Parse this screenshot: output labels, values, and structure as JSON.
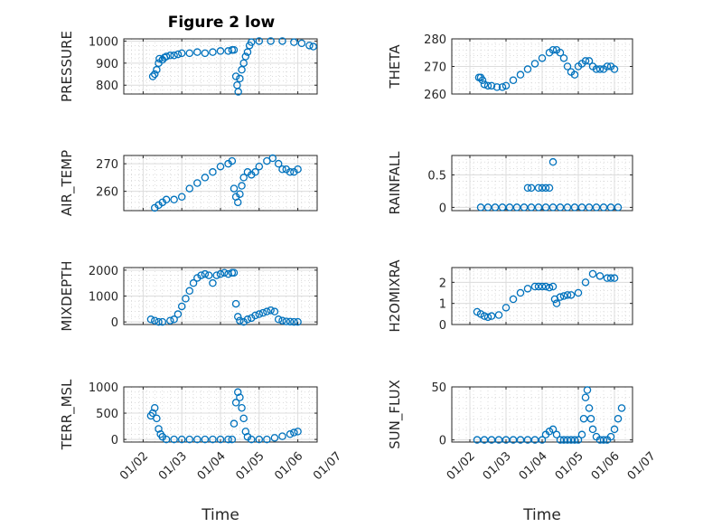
{
  "figure": {
    "title": "Figure 2 low",
    "xlabel": "Time"
  },
  "colors": {
    "marker": "#0072BD",
    "axis": "#262626"
  },
  "chart_data": [
    {
      "type": "scatter",
      "ylabel": "PRESSURE",
      "ylim": [
        760,
        1010
      ],
      "yticks": [
        800,
        900,
        1000
      ],
      "xlim": [
        1.5,
        6.5
      ],
      "xticks": [
        2,
        3,
        4,
        5,
        6,
        7
      ],
      "xticklabels": [
        "01/02",
        "01/03",
        "01/04",
        "01/05",
        "01/06",
        "01/07"
      ],
      "points": [
        [
          2.25,
          840
        ],
        [
          2.3,
          850
        ],
        [
          2.35,
          870
        ],
        [
          2.4,
          900
        ],
        [
          2.42,
          920
        ],
        [
          2.5,
          915
        ],
        [
          2.55,
          925
        ],
        [
          2.6,
          930
        ],
        [
          2.7,
          935
        ],
        [
          2.8,
          935
        ],
        [
          2.9,
          940
        ],
        [
          3.0,
          945
        ],
        [
          3.2,
          945
        ],
        [
          3.4,
          950
        ],
        [
          3.6,
          945
        ],
        [
          3.8,
          950
        ],
        [
          4.0,
          955
        ],
        [
          4.2,
          955
        ],
        [
          4.3,
          960
        ],
        [
          4.35,
          960
        ],
        [
          4.4,
          840
        ],
        [
          4.43,
          800
        ],
        [
          4.46,
          770
        ],
        [
          4.5,
          830
        ],
        [
          4.55,
          870
        ],
        [
          4.6,
          900
        ],
        [
          4.65,
          930
        ],
        [
          4.7,
          950
        ],
        [
          4.75,
          980
        ],
        [
          4.8,
          995
        ],
        [
          5.0,
          1000
        ],
        [
          5.3,
          1000
        ],
        [
          5.6,
          1000
        ],
        [
          5.9,
          995
        ],
        [
          6.1,
          990
        ],
        [
          6.3,
          980
        ],
        [
          6.4,
          975
        ]
      ]
    },
    {
      "type": "scatter",
      "ylabel": "THETA",
      "ylim": [
        260,
        280
      ],
      "yticks": [
        260,
        270,
        280
      ],
      "xlim": [
        1.5,
        6.5
      ],
      "xticks": [
        2,
        3,
        4,
        5,
        6,
        7
      ],
      "xticklabels": [
        "01/02",
        "01/03",
        "01/04",
        "01/05",
        "01/06",
        "01/07"
      ],
      "points": [
        [
          2.25,
          266
        ],
        [
          2.3,
          266
        ],
        [
          2.35,
          265
        ],
        [
          2.4,
          263.5
        ],
        [
          2.5,
          263
        ],
        [
          2.6,
          263
        ],
        [
          2.75,
          262.5
        ],
        [
          2.9,
          262.5
        ],
        [
          3.0,
          263
        ],
        [
          3.2,
          265
        ],
        [
          3.4,
          267
        ],
        [
          3.6,
          269
        ],
        [
          3.8,
          271
        ],
        [
          4.0,
          273
        ],
        [
          4.2,
          275
        ],
        [
          4.3,
          276
        ],
        [
          4.4,
          276
        ],
        [
          4.5,
          275
        ],
        [
          4.6,
          273
        ],
        [
          4.7,
          270
        ],
        [
          4.8,
          268
        ],
        [
          4.9,
          267
        ],
        [
          5.0,
          270
        ],
        [
          5.1,
          271
        ],
        [
          5.2,
          272
        ],
        [
          5.3,
          272
        ],
        [
          5.4,
          270
        ],
        [
          5.5,
          269
        ],
        [
          5.6,
          269
        ],
        [
          5.7,
          269
        ],
        [
          5.8,
          270
        ],
        [
          5.9,
          270
        ],
        [
          6.0,
          269
        ]
      ]
    },
    {
      "type": "scatter",
      "ylabel": "AIR_TEMP",
      "ylim": [
        253,
        273
      ],
      "yticks": [
        260,
        270
      ],
      "xlim": [
        1.5,
        6.5
      ],
      "xticks": [
        2,
        3,
        4,
        5,
        6,
        7
      ],
      "xticklabels": [
        "01/02",
        "01/03",
        "01/04",
        "01/05",
        "01/06",
        "01/07"
      ],
      "points": [
        [
          2.3,
          254
        ],
        [
          2.4,
          255
        ],
        [
          2.5,
          256
        ],
        [
          2.6,
          257
        ],
        [
          2.8,
          257
        ],
        [
          3.0,
          258
        ],
        [
          3.2,
          261
        ],
        [
          3.4,
          263
        ],
        [
          3.6,
          265
        ],
        [
          3.8,
          267
        ],
        [
          4.0,
          269
        ],
        [
          4.2,
          270
        ],
        [
          4.3,
          271
        ],
        [
          4.35,
          261
        ],
        [
          4.4,
          258
        ],
        [
          4.45,
          256
        ],
        [
          4.5,
          259
        ],
        [
          4.55,
          262
        ],
        [
          4.6,
          265
        ],
        [
          4.7,
          267
        ],
        [
          4.8,
          266
        ],
        [
          4.9,
          267
        ],
        [
          5.0,
          269
        ],
        [
          5.2,
          271
        ],
        [
          5.35,
          272
        ],
        [
          5.5,
          270
        ],
        [
          5.6,
          268
        ],
        [
          5.7,
          268
        ],
        [
          5.8,
          267
        ],
        [
          5.9,
          267
        ],
        [
          6.0,
          268
        ]
      ]
    },
    {
      "type": "scatter",
      "ylabel": "RAINFALL",
      "ylim": [
        -0.05,
        0.8
      ],
      "yticks": [
        0,
        0.5
      ],
      "xlim": [
        1.5,
        6.5
      ],
      "xticks": [
        2,
        3,
        4,
        5,
        6,
        7
      ],
      "xticklabels": [
        "01/02",
        "01/03",
        "01/04",
        "01/05",
        "01/06",
        "01/07"
      ],
      "points": [
        [
          2.3,
          0
        ],
        [
          2.5,
          0
        ],
        [
          2.7,
          0
        ],
        [
          2.9,
          0
        ],
        [
          3.1,
          0
        ],
        [
          3.3,
          0
        ],
        [
          3.5,
          0
        ],
        [
          3.7,
          0
        ],
        [
          3.9,
          0
        ],
        [
          4.1,
          0
        ],
        [
          4.3,
          0
        ],
        [
          4.5,
          0
        ],
        [
          4.7,
          0
        ],
        [
          4.9,
          0
        ],
        [
          5.1,
          0
        ],
        [
          5.3,
          0
        ],
        [
          5.5,
          0
        ],
        [
          5.7,
          0
        ],
        [
          5.9,
          0
        ],
        [
          6.1,
          0
        ],
        [
          3.6,
          0.3
        ],
        [
          3.7,
          0.3
        ],
        [
          3.9,
          0.3
        ],
        [
          4.0,
          0.3
        ],
        [
          4.1,
          0.3
        ],
        [
          4.2,
          0.3
        ],
        [
          4.3,
          0.7
        ]
      ]
    },
    {
      "type": "scatter",
      "ylabel": "MIXDEPTH",
      "ylim": [
        -100,
        2100
      ],
      "yticks": [
        0,
        1000,
        2000
      ],
      "xlim": [
        1.5,
        6.5
      ],
      "xticks": [
        2,
        3,
        4,
        5,
        6,
        7
      ],
      "xticklabels": [
        "01/02",
        "01/03",
        "01/04",
        "01/05",
        "01/06",
        "01/07"
      ],
      "points": [
        [
          2.2,
          100
        ],
        [
          2.3,
          50
        ],
        [
          2.4,
          0
        ],
        [
          2.5,
          0
        ],
        [
          2.7,
          50
        ],
        [
          2.8,
          100
        ],
        [
          2.9,
          300
        ],
        [
          3.0,
          600
        ],
        [
          3.1,
          900
        ],
        [
          3.2,
          1200
        ],
        [
          3.3,
          1500
        ],
        [
          3.4,
          1700
        ],
        [
          3.5,
          1800
        ],
        [
          3.6,
          1850
        ],
        [
          3.7,
          1800
        ],
        [
          3.8,
          1500
        ],
        [
          3.9,
          1800
        ],
        [
          4.0,
          1850
        ],
        [
          4.1,
          1900
        ],
        [
          4.2,
          1850
        ],
        [
          4.3,
          1900
        ],
        [
          4.35,
          1900
        ],
        [
          4.4,
          700
        ],
        [
          4.45,
          200
        ],
        [
          4.5,
          50
        ],
        [
          4.6,
          0
        ],
        [
          4.7,
          100
        ],
        [
          4.8,
          150
        ],
        [
          4.9,
          250
        ],
        [
          5.0,
          300
        ],
        [
          5.1,
          350
        ],
        [
          5.2,
          400
        ],
        [
          5.3,
          450
        ],
        [
          5.4,
          400
        ],
        [
          5.5,
          100
        ],
        [
          5.6,
          50
        ],
        [
          5.7,
          20
        ],
        [
          5.8,
          10
        ],
        [
          5.9,
          0
        ],
        [
          6.0,
          0
        ]
      ]
    },
    {
      "type": "scatter",
      "ylabel": "H2OMIXRA",
      "ylim": [
        0,
        2.7
      ],
      "yticks": [
        0,
        1,
        2
      ],
      "xlim": [
        1.5,
        6.5
      ],
      "xticks": [
        2,
        3,
        4,
        5,
        6,
        7
      ],
      "xticklabels": [
        "01/02",
        "01/03",
        "01/04",
        "01/05",
        "01/06",
        "01/07"
      ],
      "points": [
        [
          2.2,
          0.6
        ],
        [
          2.3,
          0.5
        ],
        [
          2.4,
          0.4
        ],
        [
          2.5,
          0.35
        ],
        [
          2.6,
          0.4
        ],
        [
          2.8,
          0.45
        ],
        [
          3.0,
          0.8
        ],
        [
          3.2,
          1.2
        ],
        [
          3.4,
          1.5
        ],
        [
          3.6,
          1.7
        ],
        [
          3.8,
          1.8
        ],
        [
          3.9,
          1.8
        ],
        [
          4.0,
          1.8
        ],
        [
          4.1,
          1.8
        ],
        [
          4.2,
          1.75
        ],
        [
          4.3,
          1.8
        ],
        [
          4.35,
          1.2
        ],
        [
          4.4,
          1.0
        ],
        [
          4.5,
          1.3
        ],
        [
          4.6,
          1.35
        ],
        [
          4.7,
          1.4
        ],
        [
          4.8,
          1.4
        ],
        [
          5.0,
          1.5
        ],
        [
          5.2,
          2.0
        ],
        [
          5.4,
          2.4
        ],
        [
          5.6,
          2.3
        ],
        [
          5.8,
          2.2
        ],
        [
          5.9,
          2.2
        ],
        [
          6.0,
          2.2
        ]
      ]
    },
    {
      "type": "scatter",
      "ylabel": "TERR_MSL",
      "ylim": [
        -50,
        1000
      ],
      "yticks": [
        0,
        500,
        1000
      ],
      "xlim": [
        1.5,
        6.5
      ],
      "xticks": [
        2,
        3,
        4,
        5,
        6,
        7
      ],
      "xticklabels": [
        "01/02",
        "01/03",
        "01/04",
        "01/05",
        "01/06",
        "01/07"
      ],
      "points": [
        [
          2.2,
          450
        ],
        [
          2.25,
          500
        ],
        [
          2.3,
          600
        ],
        [
          2.35,
          400
        ],
        [
          2.4,
          200
        ],
        [
          2.45,
          100
        ],
        [
          2.5,
          50
        ],
        [
          2.6,
          0
        ],
        [
          2.8,
          0
        ],
        [
          3.0,
          0
        ],
        [
          3.2,
          0
        ],
        [
          3.4,
          0
        ],
        [
          3.6,
          0
        ],
        [
          3.8,
          0
        ],
        [
          4.0,
          0
        ],
        [
          4.2,
          0
        ],
        [
          4.3,
          0
        ],
        [
          4.35,
          300
        ],
        [
          4.4,
          700
        ],
        [
          4.45,
          900
        ],
        [
          4.5,
          800
        ],
        [
          4.55,
          600
        ],
        [
          4.6,
          400
        ],
        [
          4.65,
          150
        ],
        [
          4.7,
          50
        ],
        [
          4.8,
          0
        ],
        [
          5.0,
          0
        ],
        [
          5.2,
          0
        ],
        [
          5.4,
          30
        ],
        [
          5.6,
          60
        ],
        [
          5.8,
          100
        ],
        [
          5.9,
          130
        ],
        [
          6.0,
          150
        ]
      ]
    },
    {
      "type": "scatter",
      "ylabel": "SUN_FLUX",
      "ylim": [
        -2,
        50
      ],
      "yticks": [
        0,
        50
      ],
      "xlim": [
        1.5,
        6.5
      ],
      "xticks": [
        2,
        3,
        4,
        5,
        6,
        7
      ],
      "xticklabels": [
        "01/02",
        "01/03",
        "01/04",
        "01/05",
        "01/06",
        "01/07"
      ],
      "points": [
        [
          2.2,
          0
        ],
        [
          2.4,
          0
        ],
        [
          2.6,
          0
        ],
        [
          2.8,
          0
        ],
        [
          3.0,
          0
        ],
        [
          3.2,
          0
        ],
        [
          3.4,
          0
        ],
        [
          3.6,
          0
        ],
        [
          3.8,
          0
        ],
        [
          4.0,
          0
        ],
        [
          4.1,
          5
        ],
        [
          4.2,
          8
        ],
        [
          4.3,
          10
        ],
        [
          4.4,
          5
        ],
        [
          4.5,
          0
        ],
        [
          4.6,
          0
        ],
        [
          4.7,
          0
        ],
        [
          4.8,
          0
        ],
        [
          4.9,
          0
        ],
        [
          5.0,
          0
        ],
        [
          5.1,
          5
        ],
        [
          5.15,
          20
        ],
        [
          5.2,
          40
        ],
        [
          5.25,
          47
        ],
        [
          5.3,
          30
        ],
        [
          5.35,
          20
        ],
        [
          5.4,
          10
        ],
        [
          5.5,
          3
        ],
        [
          5.6,
          0
        ],
        [
          5.7,
          0
        ],
        [
          5.8,
          0
        ],
        [
          5.9,
          3
        ],
        [
          6.0,
          10
        ],
        [
          6.1,
          20
        ],
        [
          6.2,
          30
        ]
      ]
    }
  ]
}
